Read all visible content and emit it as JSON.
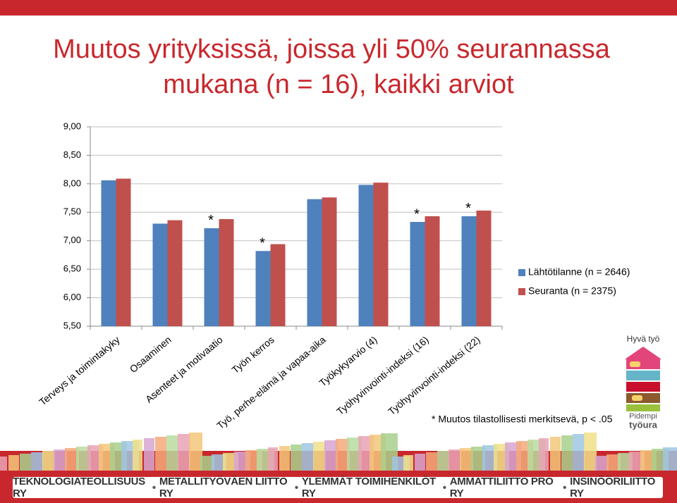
{
  "chart_data": {
    "type": "bar",
    "title_lines": [
      "Muutos yrityksissä, joissa yli 50% seurannassa",
      "mukana (n = 16), kaikki arviot"
    ],
    "categories": [
      "Terveys ja toimintakyky",
      "Osaaminen",
      "Asenteet ja motivaatio",
      "Työn kerros",
      "Työ, perhe-elämä ja vapaa-aika",
      "Työkykyarvio (4)",
      "Työhyvinvointi-indeksi (16)",
      "Työhyvinvointi-indeksi (22)"
    ],
    "series": [
      {
        "name": "Lähtötilanne (n = 2646)",
        "color": "#4f81bd",
        "values": [
          8.06,
          7.3,
          7.22,
          6.82,
          7.73,
          7.98,
          7.33,
          7.43
        ]
      },
      {
        "name": "Seuranta (n = 2375)",
        "color": "#c0504d",
        "values": [
          8.09,
          7.36,
          7.38,
          6.94,
          7.76,
          8.02,
          7.43,
          7.53
        ]
      }
    ],
    "significance": [
      null,
      null,
      "*",
      "*",
      null,
      null,
      "*",
      "*"
    ],
    "ylim": [
      5.5,
      9
    ],
    "yticks": [
      {
        "value": 5.5,
        "label": "5,50"
      },
      {
        "value": 6,
        "label": "6,00"
      },
      {
        "value": 6.5,
        "label": "6,50"
      },
      {
        "value": 7,
        "label": "7,00"
      },
      {
        "value": 7.5,
        "label": "7,50"
      },
      {
        "value": 8,
        "label": "8,00"
      },
      {
        "value": 8.5,
        "label": "8,50"
      },
      {
        "value": 9,
        "label": "9,00"
      }
    ],
    "grid": true,
    "legend": "right",
    "footnote": "* Muutos tilastollisesti merkitsevä, p < .05"
  },
  "logo": {
    "top": "Hyvä työ",
    "bottom_lines": [
      "Pidempi",
      "työura"
    ]
  },
  "footer": {
    "organizations": [
      "TEKNOLOGIATEOLLISUUS RY",
      "METALLITYÖVÄEN LIITTO RY",
      "YLEMMÄT TOIMIHENKILÖT RY",
      "AMMATTILIITTO PRO RY",
      "INSINÖÖRILIITTO RY"
    ]
  }
}
